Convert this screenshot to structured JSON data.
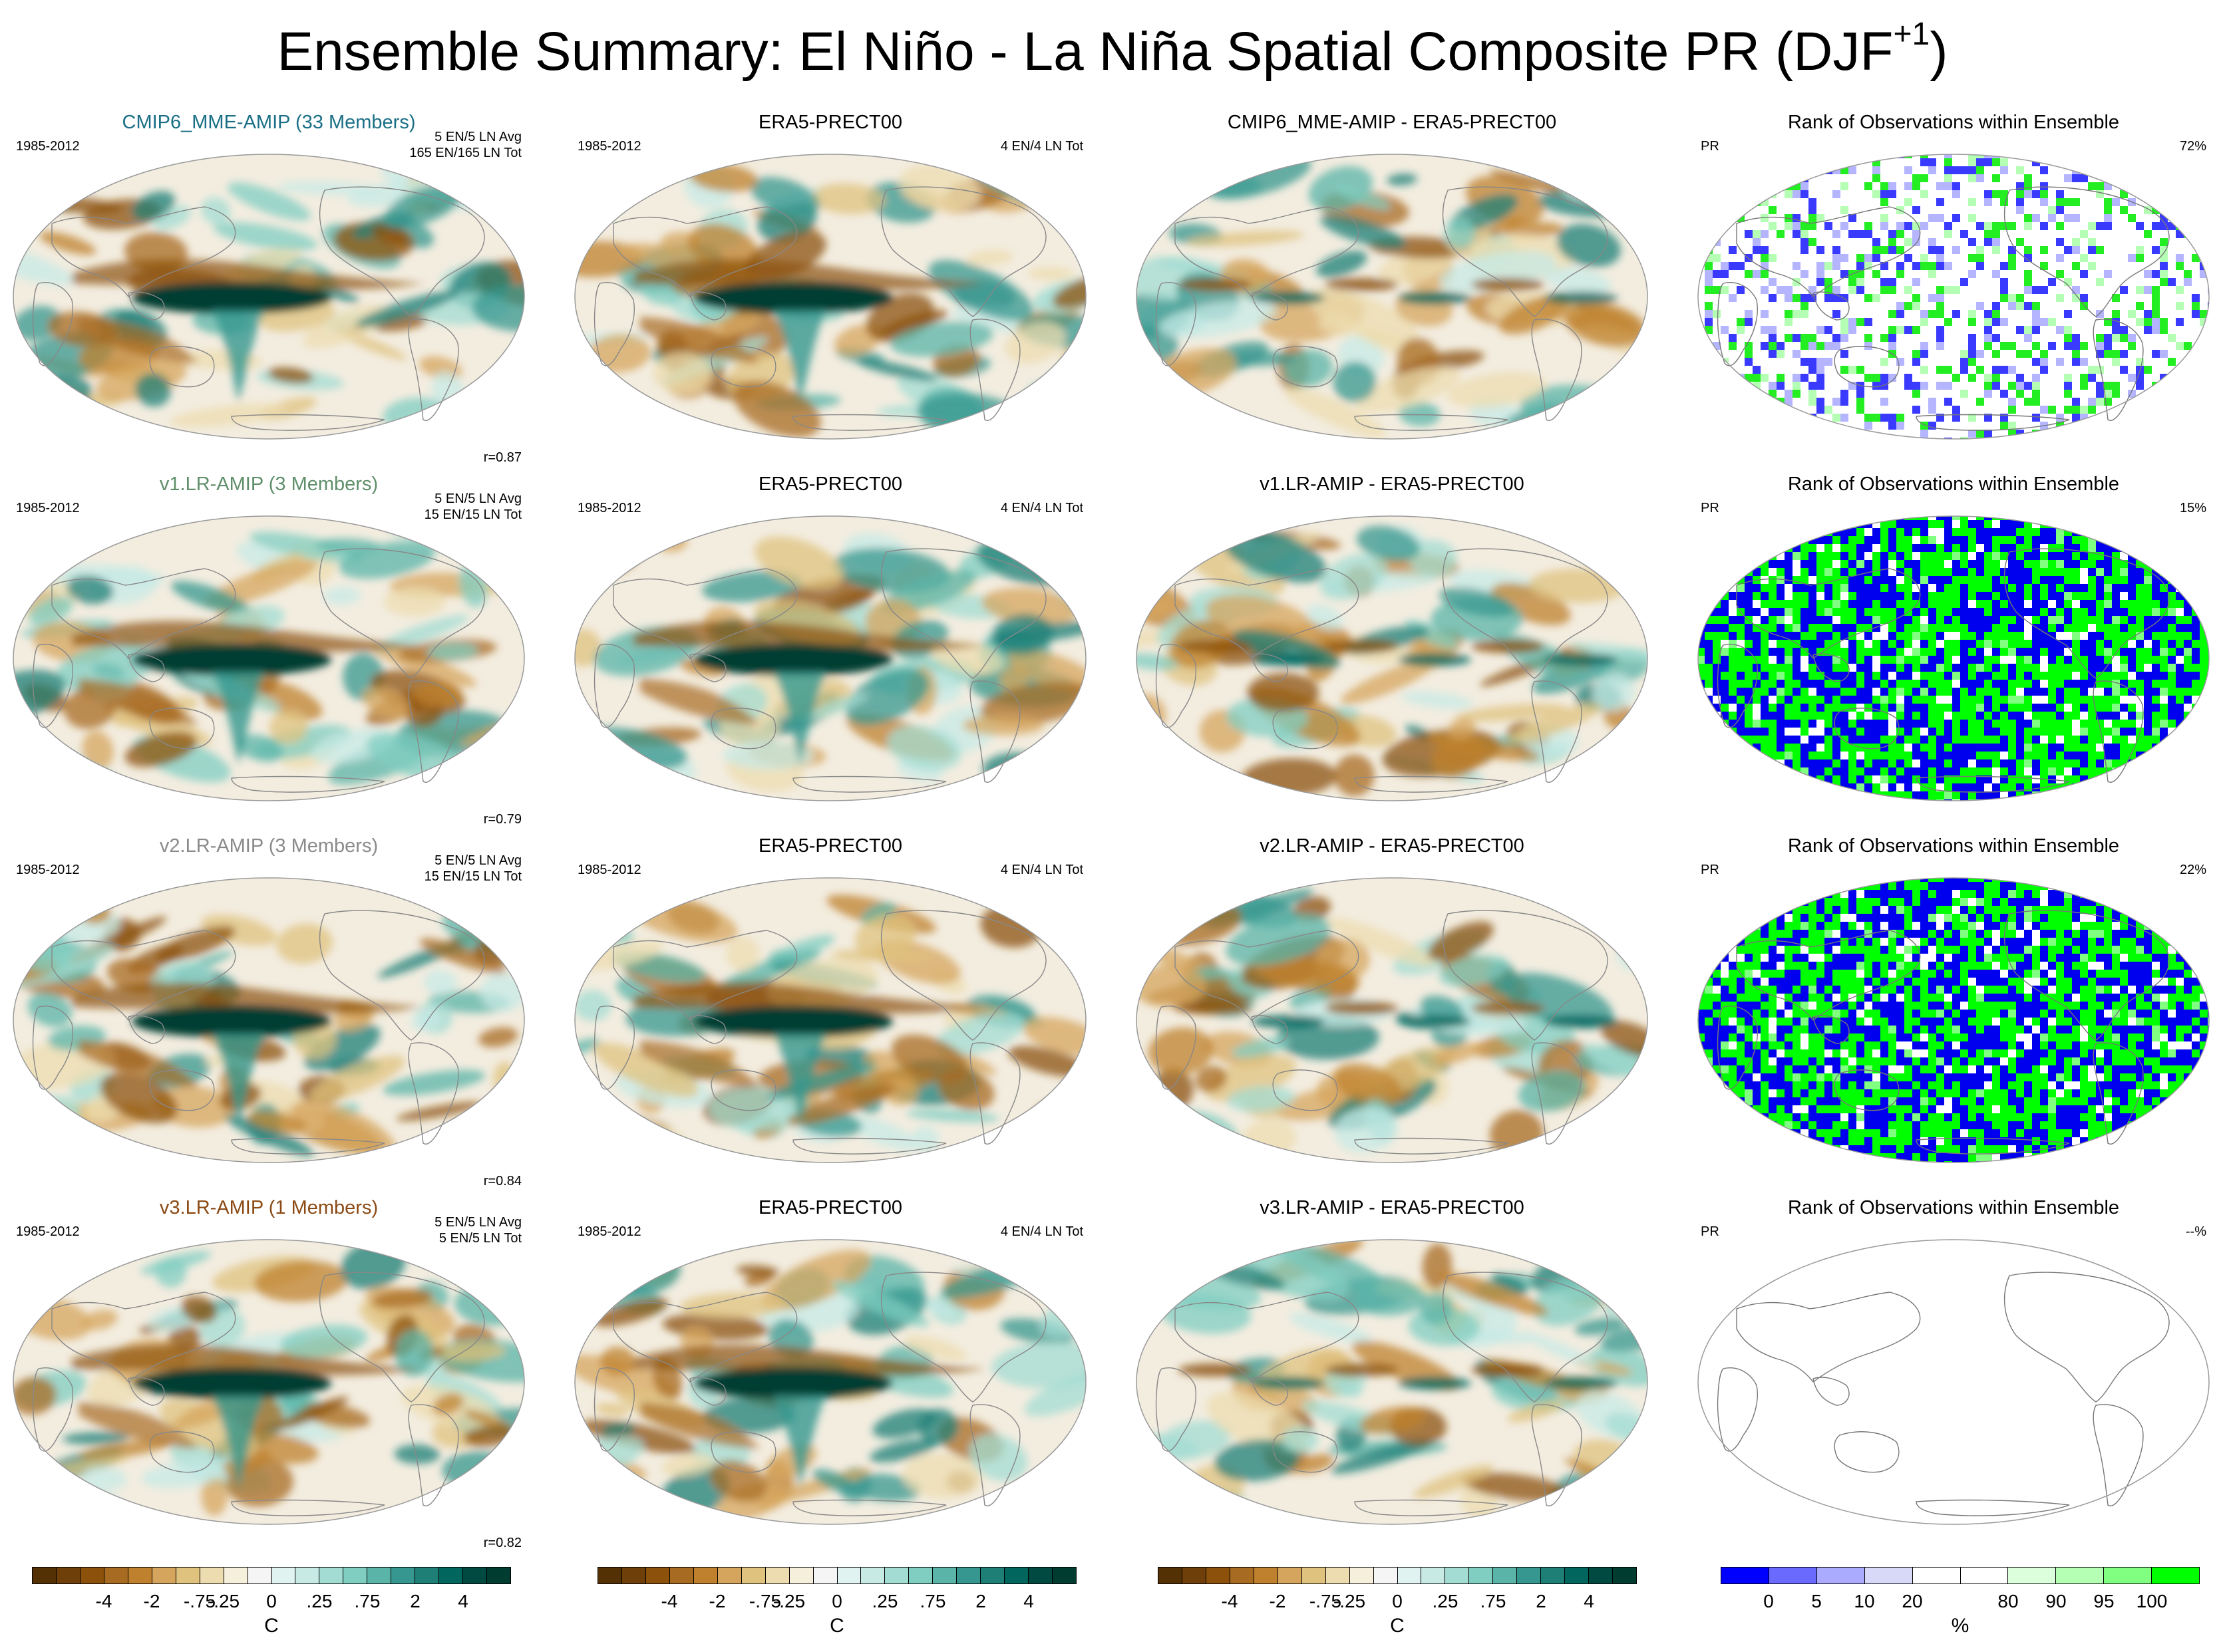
{
  "title": {
    "text": "Ensemble Summary: El Niño - La Niña Spatial Composite PR (DJF",
    "superscript": "+1",
    "close": ")"
  },
  "colors": {
    "model_title_1": "#1a6f86",
    "model_title_2": "#5f8f6a",
    "model_title_3": "#8a8a8a",
    "model_title_4": "#8b4a14"
  },
  "rows": [
    {
      "model": {
        "title": "CMIP6_MME-AMIP (33 Members)",
        "years": "1985-2012",
        "info1": "5 EN/5 LN Avg",
        "info2": "165 EN/165 LN Tot",
        "corr": "r=0.87"
      },
      "obs": {
        "title": "ERA5-PRECT00",
        "years": "1985-2012",
        "info": "4 EN/4 LN Tot"
      },
      "diff": {
        "title": "CMIP6_MME-AMIP - ERA5-PRECT00"
      },
      "rank": {
        "title": "Rank of Observations within Ensemble",
        "var": "PR",
        "pct": "72%"
      }
    },
    {
      "model": {
        "title": "v1.LR-AMIP (3 Members)",
        "years": "1985-2012",
        "info1": "5 EN/5 LN Avg",
        "info2": "15 EN/15 LN Tot",
        "corr": "r=0.79"
      },
      "obs": {
        "title": "ERA5-PRECT00",
        "years": "1985-2012",
        "info": "4 EN/4 LN Tot"
      },
      "diff": {
        "title": "v1.LR-AMIP - ERA5-PRECT00"
      },
      "rank": {
        "title": "Rank of Observations within Ensemble",
        "var": "PR",
        "pct": "15%"
      }
    },
    {
      "model": {
        "title": "v2.LR-AMIP (3 Members)",
        "years": "1985-2012",
        "info1": "5 EN/5 LN Avg",
        "info2": "15 EN/15 LN Tot",
        "corr": "r=0.84"
      },
      "obs": {
        "title": "ERA5-PRECT00",
        "years": "1985-2012",
        "info": "4 EN/4 LN Tot"
      },
      "diff": {
        "title": "v2.LR-AMIP - ERA5-PRECT00"
      },
      "rank": {
        "title": "Rank of Observations within Ensemble",
        "var": "PR",
        "pct": "22%"
      }
    },
    {
      "model": {
        "title": "v3.LR-AMIP (1 Members)",
        "years": "1985-2012",
        "info1": "5 EN/5 LN Avg",
        "info2": "5 EN/5 LN Tot",
        "corr": "r=0.82"
      },
      "obs": {
        "title": "ERA5-PRECT00",
        "years": "1985-2012",
        "info": "4 EN/4 LN Tot"
      },
      "diff": {
        "title": "v3.LR-AMIP - ERA5-PRECT00"
      },
      "rank": {
        "title": "Rank of Observations within Ensemble",
        "var": "PR",
        "pct": "--%"
      }
    }
  ],
  "chart_data": {
    "type": "heatmap",
    "title": "Ensemble Summary: El Niño - La Niña Spatial Composite PR (DJF+1)",
    "projection": "global map (Robinson-like), Pacific centered",
    "rank_percentages": {
      "CMIP6_MME-AMIP": 72,
      "v1.LR-AMIP": 15,
      "v2.LR-AMIP": 22,
      "v3.LR-AMIP": null
    },
    "pattern_correlations": {
      "CMIP6_MME-AMIP": 0.87,
      "v1.LR-AMIP": 0.79,
      "v2.LR-AMIP": 0.84,
      "v3.LR-AMIP": 0.82
    },
    "colorbar_diverging": {
      "unit": "C",
      "tick_labels": [
        "-4",
        "-2",
        "-.75",
        "-.25",
        "0",
        ".25",
        ".75",
        "2",
        "4"
      ],
      "colors": [
        "#543005",
        "#6f3f0a",
        "#8c510a",
        "#a86b22",
        "#bf812d",
        "#d5a55d",
        "#dfc27d",
        "#ecdcaf",
        "#f6efdc",
        "#f5f5f5",
        "#e0f3f1",
        "#c7eae5",
        "#a3dcd3",
        "#80cdc1",
        "#5ab4a8",
        "#35978f",
        "#1e7f77",
        "#01665e",
        "#014a42",
        "#003c30"
      ]
    },
    "colorbar_rank": {
      "unit": "%",
      "tick_labels": [
        "0",
        "5",
        "10",
        "20",
        "80",
        "90",
        "95",
        "100"
      ],
      "colors": [
        "#0000ff",
        "#6a6aff",
        "#aaaaff",
        "#d8d8f8",
        "#ffffff",
        "#ffffff",
        "#dcffdc",
        "#b4ffb4",
        "#80ff80",
        "#00ff00"
      ]
    }
  }
}
